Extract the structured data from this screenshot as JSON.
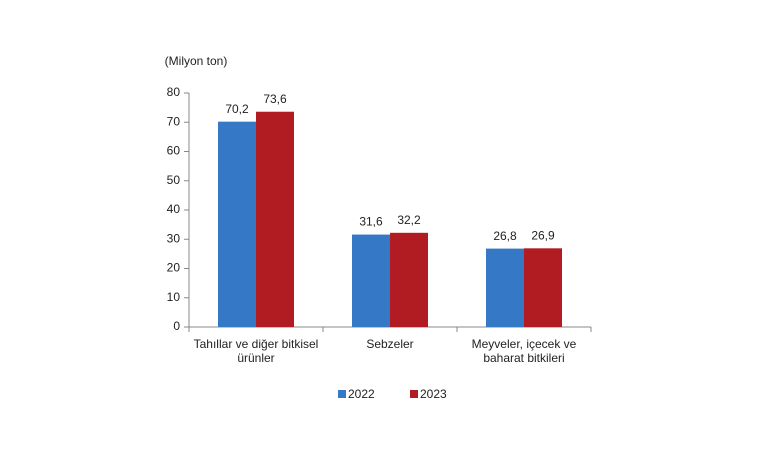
{
  "chart_data": {
    "type": "bar",
    "ylabel": "(Milyon ton)",
    "categories": [
      "Tahıllar ve diğer bitkisel ürünler",
      "Sebzeler",
      "Meyveler, içecek ve baharat bitkileri"
    ],
    "series": [
      {
        "name": "2022",
        "color": "#3478c6",
        "values": [
          70.2,
          31.6,
          26.8
        ],
        "value_labels": [
          "70,2",
          "31,6",
          "26,8"
        ]
      },
      {
        "name": "2023",
        "color": "#b01c22",
        "values": [
          73.6,
          32.2,
          26.9
        ],
        "value_labels": [
          "73,6",
          "32,2",
          "26,9"
        ]
      }
    ],
    "ylim": [
      0,
      80
    ],
    "yticks": [
      0,
      10,
      20,
      30,
      40,
      50,
      60,
      70,
      80
    ],
    "grid": false,
    "legend": "bottom"
  }
}
